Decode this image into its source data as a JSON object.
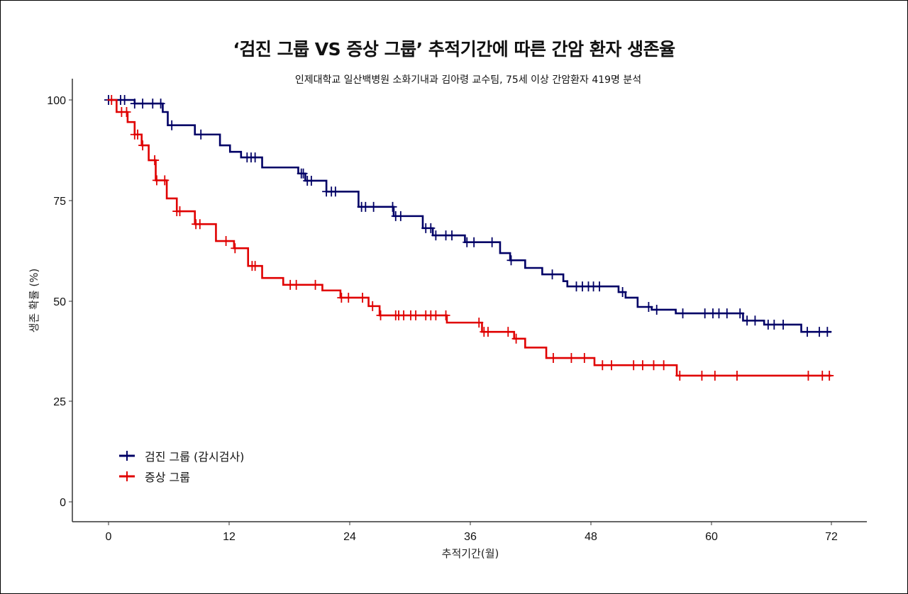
{
  "title": "‘검진 그룹  VS 증상 그룹’ 추적기간에 따른 간암 환자 생존율",
  "subtitle": "인제대학교 일산백병원 소화기내과 김아령 교수팀, 75세 이상 간암환자 419명 분석",
  "colors": {
    "screening": "#000066",
    "symptom": "#e00000"
  },
  "chart_data": {
    "type": "line",
    "subtype": "kaplan-meier step",
    "title": "‘검진 그룹  VS 증상 그룹’ 추적기간에 따른 간암 환자 생존율",
    "subtitle": "인제대학교 일산백병원 소화기내과 김아령 교수팀, 75세 이상 간암환자 419명 분석",
    "xlabel": "추적기간(월)",
    "ylabel": "생존 확률 (%)",
    "xlim": [
      0,
      72
    ],
    "ylim": [
      0,
      100
    ],
    "xticks": [
      0,
      12,
      24,
      36,
      48,
      60,
      72
    ],
    "yticks": [
      0,
      25,
      50,
      75,
      100
    ],
    "grid": false,
    "legend_position": "bottom-left inside",
    "series": [
      {
        "name": "검진 그룹 (감시검사)",
        "color": "#000066",
        "points": [
          [
            0,
            100
          ],
          [
            2.6,
            99.1
          ],
          [
            5.4,
            97
          ],
          [
            5.9,
            93.7
          ],
          [
            8.6,
            91.4
          ],
          [
            11.1,
            88.7
          ],
          [
            12.1,
            87.1
          ],
          [
            13.2,
            85.7
          ],
          [
            15.3,
            83.2
          ],
          [
            18.9,
            81.7
          ],
          [
            19.6,
            79.9
          ],
          [
            21.7,
            77.2
          ],
          [
            24.9,
            73.4
          ],
          [
            28.4,
            71.1
          ],
          [
            31.3,
            68.1
          ],
          [
            32.3,
            66.3
          ],
          [
            35.5,
            64.6
          ],
          [
            39,
            61.9
          ],
          [
            40,
            60.1
          ],
          [
            41.5,
            58.2
          ],
          [
            43.2,
            56.6
          ],
          [
            45.3,
            54.9
          ],
          [
            45.7,
            53.6
          ],
          [
            50.8,
            52.2
          ],
          [
            51.5,
            50.8
          ],
          [
            52.7,
            48.5
          ],
          [
            54.1,
            47.8
          ],
          [
            56.5,
            46.9
          ],
          [
            63.2,
            45.1
          ],
          [
            65.3,
            44.1
          ],
          [
            69,
            42.3
          ],
          [
            72,
            42.3
          ]
        ],
        "censor_times": [
          0,
          1.2,
          1.6,
          2.6,
          3.4,
          4.4,
          5.2,
          6.3,
          9.2,
          13.8,
          14.2,
          14.6,
          19.2,
          19.4,
          19.8,
          20.2,
          21.7,
          22.2,
          22.6,
          25.2,
          25.6,
          26.4,
          28.3,
          28.6,
          29.1,
          31.6,
          32.1,
          32.6,
          33.6,
          34.2,
          35.7,
          36.4,
          38.2,
          40.1,
          44.2,
          46.6,
          47.2,
          47.8,
          48.3,
          48.9,
          51.2,
          53.8,
          54.6,
          57.2,
          59.4,
          60.2,
          60.8,
          61.6,
          62.9,
          63.6,
          64.4,
          65.7,
          66.3,
          67.2,
          69.6,
          70.8,
          71.6
        ]
      },
      {
        "name": "증상 그룹",
        "color": "#e00000",
        "points": [
          [
            0,
            100
          ],
          [
            0.8,
            97
          ],
          [
            1.9,
            94.5
          ],
          [
            2.6,
            91.4
          ],
          [
            3.3,
            88.7
          ],
          [
            4,
            85
          ],
          [
            4.7,
            80
          ],
          [
            5.8,
            75.5
          ],
          [
            6.8,
            72.3
          ],
          [
            8.6,
            69.1
          ],
          [
            10.7,
            64.9
          ],
          [
            12.5,
            63.1
          ],
          [
            13.9,
            58.7
          ],
          [
            15.3,
            55.7
          ],
          [
            17.4,
            54
          ],
          [
            21.3,
            52.6
          ],
          [
            23.1,
            50.8
          ],
          [
            25.9,
            48.7
          ],
          [
            27,
            46.4
          ],
          [
            33.7,
            44.6
          ],
          [
            37.2,
            42.3
          ],
          [
            40.4,
            40.6
          ],
          [
            41.5,
            38.4
          ],
          [
            43.6,
            35.8
          ],
          [
            48.4,
            34
          ],
          [
            56.6,
            31.4
          ],
          [
            72,
            31.4
          ]
        ],
        "censor_times": [
          0.3,
          1.3,
          1.8,
          2.6,
          2.9,
          3.4,
          4.6,
          4.8,
          5.6,
          6.8,
          7.1,
          8.7,
          9.1,
          11.7,
          12.6,
          14.3,
          14.6,
          18.1,
          18.7,
          20.6,
          23.2,
          23.9,
          25.3,
          26.3,
          27.1,
          28.6,
          28.9,
          29.4,
          30.1,
          30.6,
          31.6,
          32.1,
          32.6,
          33.6,
          36.9,
          37.4,
          37.8,
          39.8,
          40.6,
          44.3,
          46.1,
          47.4,
          49.2,
          50.1,
          52.3,
          53.2,
          54.3,
          55.3,
          56.9,
          59.1,
          60.4,
          62.6,
          69.7,
          71.1,
          71.8
        ]
      }
    ]
  },
  "legend": [
    {
      "label": "검진 그룹 (감시검사)",
      "color": "#000066"
    },
    {
      "label": "증상 그룹",
      "color": "#e00000"
    }
  ],
  "axes": {
    "x": {
      "label": "추적기간(월)",
      "ticks": [
        "0",
        "12",
        "24",
        "36",
        "48",
        "60",
        "72"
      ]
    },
    "y": {
      "label": "생존 확률 (%)",
      "ticks": [
        "100",
        "75",
        "50",
        "25",
        "0"
      ]
    }
  }
}
